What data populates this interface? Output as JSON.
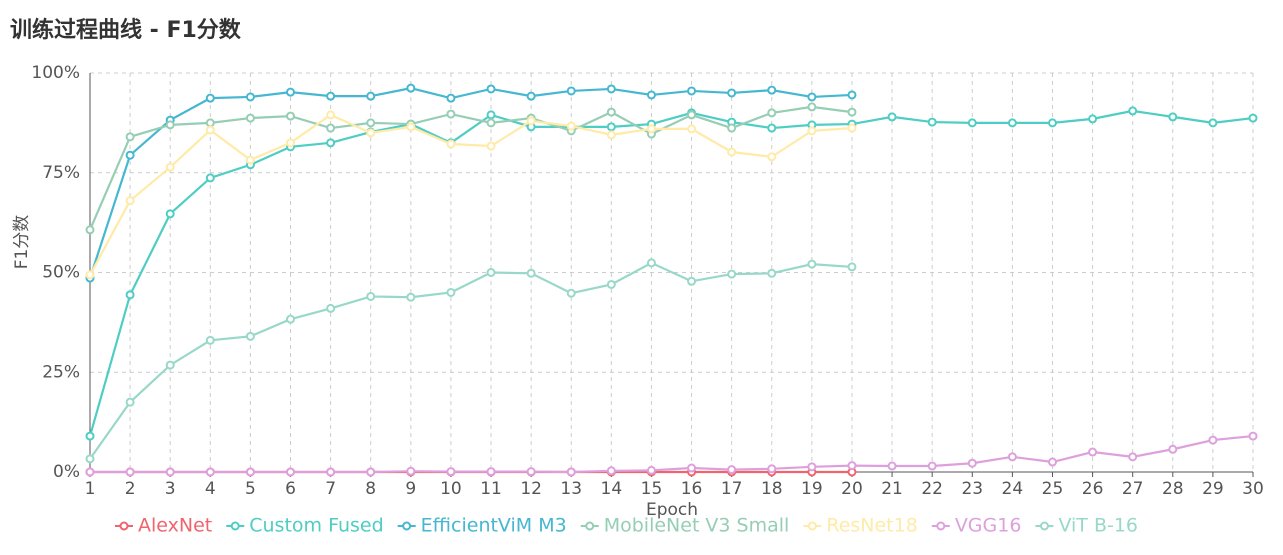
{
  "chart_data": {
    "type": "line",
    "title": "训练过程曲线 - F1分数",
    "y_label": "F1分数",
    "x_label": "Epoch",
    "x": [
      1,
      2,
      3,
      4,
      5,
      6,
      7,
      8,
      9,
      10,
      11,
      12,
      13,
      14,
      15,
      16,
      17,
      18,
      19,
      20,
      21,
      22,
      23,
      24,
      25,
      26,
      27,
      28,
      29,
      30
    ],
    "xlim": [
      1,
      30
    ],
    "xticks": [
      1,
      2,
      3,
      4,
      5,
      6,
      7,
      8,
      9,
      10,
      11,
      12,
      13,
      14,
      15,
      16,
      17,
      18,
      19,
      20,
      21,
      22,
      23,
      24,
      25,
      26,
      27,
      28,
      29,
      30
    ],
    "ylim": [
      0,
      100
    ],
    "yticks": [
      {
        "value": 0,
        "label": "0%"
      },
      {
        "value": 25,
        "label": "25%"
      },
      {
        "value": 50,
        "label": "50%"
      },
      {
        "value": 75,
        "label": "75%"
      },
      {
        "value": 100,
        "label": "100%"
      }
    ],
    "grid": true,
    "legend": "bottom",
    "series": [
      {
        "name": "AlexNet",
        "color": "#f0646e",
        "values": [
          0,
          0,
          0,
          0,
          0,
          0,
          0,
          0,
          0,
          0,
          0,
          0,
          0,
          0,
          0,
          0,
          0,
          0,
          0,
          0,
          null,
          null,
          null,
          null,
          null,
          null,
          null,
          null,
          null,
          null
        ]
      },
      {
        "name": "Custom Fused",
        "color": "#4ecdc4",
        "values": [
          9,
          44.4,
          64.7,
          73.7,
          77,
          81.5,
          82.5,
          85.2,
          87.2,
          82.5,
          89.5,
          86.5,
          86.5,
          86.5,
          87.2,
          90,
          87.7,
          86.2,
          87,
          87.2,
          89,
          87.7,
          87.5,
          87.5,
          87.5,
          88.5,
          90.5,
          89,
          87.5,
          88.7
        ]
      },
      {
        "name": "EfficientViM M3",
        "color": "#45b7d1",
        "values": [
          48.6,
          79.4,
          88.2,
          93.7,
          94,
          95.2,
          94.2,
          94.2,
          96.2,
          93.7,
          96,
          94.2,
          95.5,
          96,
          94.5,
          95.5,
          95,
          95.7,
          94,
          94.5,
          null,
          null,
          null,
          null,
          null,
          null,
          null,
          null,
          null,
          null
        ]
      },
      {
        "name": "MobileNet V3 Small",
        "color": "#96ceb4",
        "values": [
          60.7,
          84,
          87,
          87.5,
          88.7,
          89.2,
          86.2,
          87.5,
          87.2,
          89.7,
          87.5,
          88.7,
          85.5,
          90.2,
          84.7,
          89.5,
          86.2,
          90,
          91.5,
          90.2,
          null,
          null,
          null,
          null,
          null,
          null,
          null,
          null,
          null,
          null
        ]
      },
      {
        "name": "ResNet18",
        "color": "#ffeaa7",
        "values": [
          49.4,
          68,
          76.4,
          85.7,
          78.2,
          82.5,
          89.5,
          85,
          86.5,
          82.2,
          81.7,
          88,
          86.7,
          84.5,
          86,
          86,
          80.2,
          79,
          85.5,
          86.2,
          null,
          null,
          null,
          null,
          null,
          null,
          null,
          null,
          null,
          null
        ]
      },
      {
        "name": "VGG16",
        "color": "#dda0dd",
        "values": [
          0,
          0,
          0,
          0,
          0,
          0,
          0,
          0,
          0.2,
          0.1,
          0.1,
          0.1,
          0,
          0.3,
          0.4,
          1,
          0.6,
          0.8,
          1.3,
          1.6,
          1.5,
          1.5,
          2.2,
          3.8,
          2.5,
          5,
          3.8,
          5.7,
          8,
          9
        ]
      },
      {
        "name": "ViT B-16",
        "color": "#98d8c8",
        "values": [
          3.3,
          17.5,
          26.8,
          33,
          34,
          38.3,
          41,
          44,
          43.8,
          45,
          50,
          49.8,
          44.8,
          47,
          52.4,
          47.8,
          49.6,
          49.8,
          52.1,
          51.4,
          null,
          null,
          null,
          null,
          null,
          null,
          null,
          null,
          null,
          null
        ]
      }
    ]
  }
}
